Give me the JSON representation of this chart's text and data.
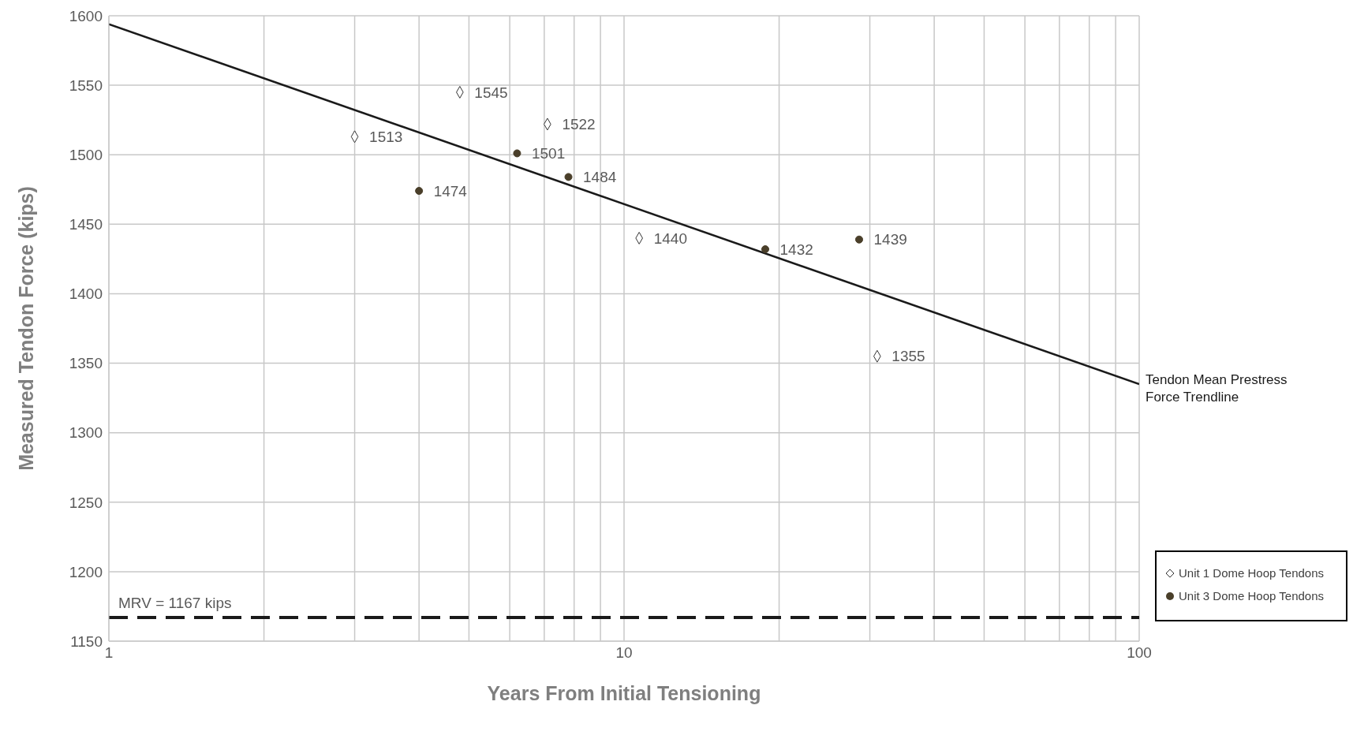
{
  "chart_data": {
    "type": "scatter",
    "xlabel": "Years From Initial Tensioning",
    "ylabel": "Measured Tendon Force (kips)",
    "log": "x",
    "xlim": [
      1,
      100
    ],
    "xticks": [
      1,
      {
        "value": 2,
        "label": null
      },
      {
        "value": 3,
        "label": null
      },
      {
        "value": 4,
        "label": null
      },
      {
        "value": 5,
        "label": null
      },
      {
        "value": 6,
        "label": null
      },
      {
        "value": 7,
        "label": null
      },
      {
        "value": 8,
        "label": null
      },
      {
        "value": 9,
        "label": null
      },
      10,
      {
        "value": 20,
        "label": null
      },
      {
        "value": 30,
        "label": null
      },
      {
        "value": 40,
        "label": null
      },
      {
        "value": 50,
        "label": null
      },
      {
        "value": 60,
        "label": null
      },
      {
        "value": 70,
        "label": null
      },
      {
        "value": 80,
        "label": null
      },
      {
        "value": 90,
        "label": null
      },
      100
    ],
    "ylim": [
      1150,
      1600
    ],
    "yticks": [
      1150,
      1200,
      1250,
      1300,
      1350,
      1400,
      1450,
      1500,
      1550,
      1600
    ],
    "grid": true,
    "legend": "bottom right",
    "series": [
      {
        "name": "Unit 1 Dome Hoop Tendons",
        "type": "scatter",
        "marker": "diamond",
        "color": "#333333",
        "x": [
          3.0,
          4.8,
          7.1,
          10.7,
          31
        ],
        "values": [
          1513,
          1545,
          1522,
          1440,
          1355
        ],
        "value_labels": [
          "1513",
          "1545",
          "1522",
          "1440",
          "1355"
        ]
      },
      {
        "name": "Unit 3 Dome Hoop Tendons",
        "type": "scatter",
        "marker": "circle",
        "color": "#4a3f2a",
        "x": [
          4.0,
          6.2,
          7.8,
          18.8,
          28.6
        ],
        "values": [
          1474,
          1501,
          1484,
          1432,
          1439
        ],
        "value_labels": [
          "1474",
          "1501",
          "1484",
          "1432",
          "1439"
        ]
      },
      {
        "name": "Tendon Mean Prestress Force Trendline",
        "type": "line",
        "marker": "none",
        "color": "#1a1a1a",
        "x": [
          1,
          100
        ],
        "values": [
          1594,
          1335
        ]
      }
    ],
    "ref_lines": [
      {
        "axis": "y",
        "value": 1167,
        "label": "MRV = 1167 kips",
        "line_style": "dashed",
        "color": "#1a1a1a"
      }
    ]
  }
}
